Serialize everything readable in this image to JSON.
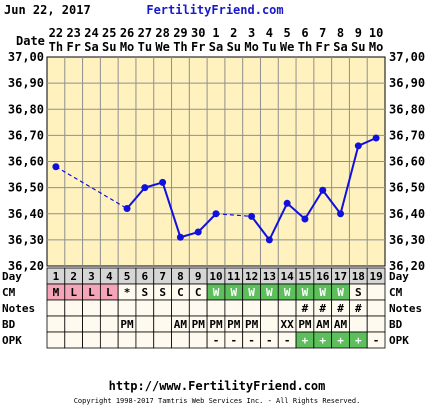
{
  "header": {
    "date": "Jun 22, 2017",
    "site": "FertilityFriend.com",
    "date_label": "Date"
  },
  "footer": {
    "url": "http://www.FertilityFriend.com",
    "copyright": "Copyright 1998-2017 Tamtris Web Services Inc. - All Rights Reserved."
  },
  "colors": {
    "plot_bg": "#fff2bf",
    "grid": "#8f8f8f",
    "line": "#1111dd",
    "cm_fertile": "#f4a5b8",
    "cm_egg_white": "#5cbf5c",
    "opk_positive": "#5cbf5c",
    "row_label_bg": "#d6d6d6",
    "row_bg": "#fffaf0"
  },
  "chart_data": {
    "type": "line",
    "title": "",
    "xlabel": "Date",
    "ylabel": "",
    "ylim": [
      36.2,
      37.0
    ],
    "yticks": [
      "37,00",
      "36,90",
      "36,80",
      "36,70",
      "36,60",
      "36,50",
      "36,40",
      "36,30",
      "36,20"
    ],
    "date_numbers": [
      "22",
      "23",
      "24",
      "25",
      "26",
      "27",
      "28",
      "29",
      "30",
      "1",
      "2",
      "3",
      "4",
      "5",
      "6",
      "7",
      "8",
      "9",
      "10"
    ],
    "weekdays": [
      "Th",
      "Fr",
      "Sa",
      "Su",
      "Mo",
      "Tu",
      "We",
      "Th",
      "Fr",
      "Sa",
      "Su",
      "Mo",
      "Tu",
      "We",
      "Th",
      "Fr",
      "Sa",
      "Su",
      "Mo"
    ],
    "cycle_days": [
      "1",
      "2",
      "3",
      "4",
      "5",
      "6",
      "7",
      "8",
      "9",
      "10",
      "11",
      "12",
      "13",
      "14",
      "15",
      "16",
      "17",
      "18",
      "19"
    ],
    "series": [
      {
        "values": [
          36.58,
          null,
          null,
          null,
          36.42,
          36.5,
          36.52,
          36.31,
          36.33,
          36.4,
          null,
          36.39,
          36.3,
          36.44,
          36.38,
          36.49,
          36.4,
          36.66,
          36.69
        ],
        "dashed_gaps": [
          [
            1,
            5
          ],
          [
            10,
            12
          ]
        ]
      }
    ],
    "grid": true
  },
  "rows": [
    {
      "label": "Day",
      "values": [
        "1",
        "2",
        "3",
        "4",
        "5",
        "6",
        "7",
        "8",
        "9",
        "10",
        "11",
        "12",
        "13",
        "14",
        "15",
        "16",
        "17",
        "18",
        "19"
      ]
    },
    {
      "label": "CM",
      "values": [
        "M",
        "L",
        "L",
        "L",
        "*",
        "S",
        "S",
        "C",
        "C",
        "W",
        "W",
        "W",
        "W",
        "W",
        "W",
        "W",
        "W",
        "S",
        ""
      ]
    },
    {
      "label": "Notes",
      "values": [
        "",
        "",
        "",
        "",
        "",
        "",
        "",
        "",
        "",
        "",
        "",
        "",
        "",
        "",
        "#",
        "#",
        "#",
        "#",
        ""
      ]
    },
    {
      "label": "BD",
      "values": [
        "",
        "",
        "",
        "",
        "PM",
        "",
        "",
        "AM",
        "PM",
        "PM",
        "PM",
        "PM",
        "",
        "XX",
        "PM",
        "AM",
        "AM",
        "",
        ""
      ]
    },
    {
      "label": "OPK",
      "values": [
        "",
        "",
        "",
        "",
        "",
        "",
        "",
        "",
        "",
        "-",
        "-",
        "-",
        "-",
        "-",
        "+",
        "+",
        "+",
        "+",
        "-"
      ]
    }
  ]
}
